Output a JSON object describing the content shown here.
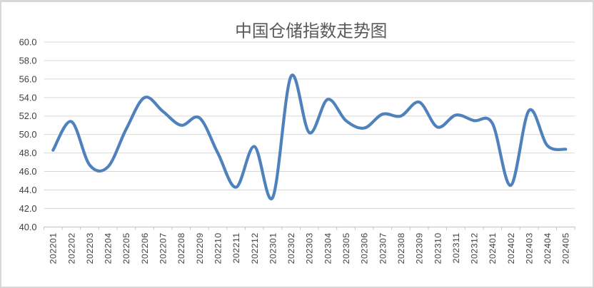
{
  "chart_data": {
    "type": "line",
    "title": "中国仓储指数走势图",
    "categories": [
      "202201",
      "202202",
      "202203",
      "202204",
      "202205",
      "202206",
      "202207",
      "202208",
      "202209",
      "202210",
      "202211",
      "202212",
      "202301",
      "202302",
      "202303",
      "202304",
      "202305",
      "202306",
      "202307",
      "202308",
      "202309",
      "202310",
      "202311",
      "202312",
      "202401",
      "202402",
      "202403",
      "202404",
      "202405"
    ],
    "values": [
      48.3,
      51.4,
      46.7,
      46.5,
      50.6,
      54.0,
      52.5,
      51.0,
      51.8,
      48.0,
      44.3,
      48.7,
      43.2,
      56.3,
      50.2,
      53.8,
      51.5,
      50.7,
      52.2,
      52.0,
      53.5,
      50.8,
      52.1,
      51.5,
      51.2,
      44.5,
      52.6,
      48.8,
      48.4
    ],
    "xlabel": "",
    "ylabel": "",
    "ylim": [
      40.0,
      60.0
    ],
    "ytick_step": 2.0,
    "ytick_labels": [
      "60.0",
      "58.0",
      "56.0",
      "54.0",
      "52.0",
      "50.0",
      "48.0",
      "46.0",
      "44.0",
      "42.0",
      "40.0"
    ],
    "smooth": true,
    "grid": true,
    "legend": false,
    "colors": {
      "line": "#4F81BD",
      "grid": "#D9D9D9",
      "axis": "#BFBFBF",
      "title_text": "#595959",
      "tick_text": "#3F3F3F",
      "background": "#FFFFFF",
      "frame_border": "#D8D8D8"
    }
  }
}
